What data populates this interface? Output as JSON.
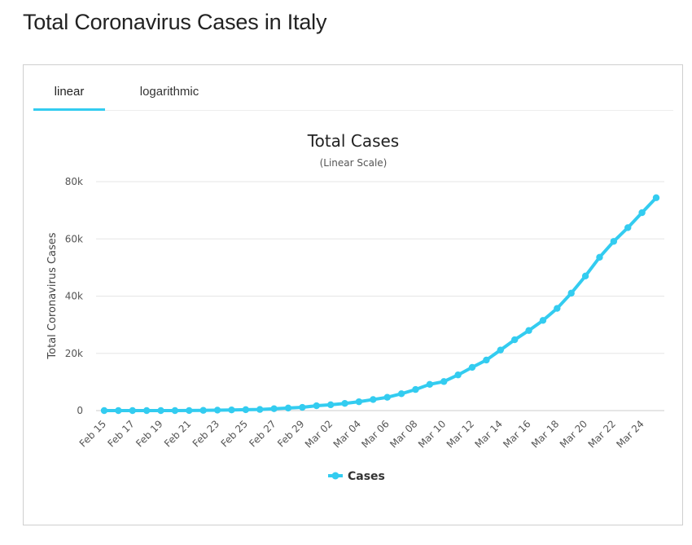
{
  "page": {
    "title": "Total Coronavirus Cases in Italy"
  },
  "tabs": [
    {
      "label": "linear",
      "active": true
    },
    {
      "label": "logarithmic",
      "active": false
    }
  ],
  "colors": {
    "series": "#33ccf0",
    "tab_active": "#33ccf0",
    "grid": "#e6e6e6"
  },
  "chart_data": {
    "type": "line",
    "title": "Total Cases",
    "subtitle": "(Linear Scale)",
    "xlabel": "",
    "ylabel": "Total Coronavirus Cases",
    "ylim": [
      0,
      80000
    ],
    "yticks": [
      0,
      20000,
      40000,
      60000,
      80000
    ],
    "ytick_labels": [
      "0",
      "20k",
      "40k",
      "60k",
      "80k"
    ],
    "grid": true,
    "legend": "bottom-center",
    "x": [
      "Feb 15",
      "Feb 16",
      "Feb 17",
      "Feb 18",
      "Feb 19",
      "Feb 20",
      "Feb 21",
      "Feb 22",
      "Feb 23",
      "Feb 24",
      "Feb 25",
      "Feb 26",
      "Feb 27",
      "Feb 28",
      "Feb 29",
      "Mar 01",
      "Mar 02",
      "Mar 03",
      "Mar 04",
      "Mar 05",
      "Mar 06",
      "Mar 07",
      "Mar 08",
      "Mar 09",
      "Mar 10",
      "Mar 11",
      "Mar 12",
      "Mar 13",
      "Mar 14",
      "Mar 15",
      "Mar 16",
      "Mar 17",
      "Mar 18",
      "Mar 19",
      "Mar 20",
      "Mar 21",
      "Mar 22",
      "Mar 23",
      "Mar 24",
      "Mar 25"
    ],
    "xtick_labels": [
      "Feb 15",
      "Feb 17",
      "Feb 19",
      "Feb 21",
      "Feb 23",
      "Feb 25",
      "Feb 27",
      "Feb 29",
      "Mar 02",
      "Mar 04",
      "Mar 06",
      "Mar 08",
      "Mar 10",
      "Mar 12",
      "Mar 14",
      "Mar 16",
      "Mar 18",
      "Mar 20",
      "Mar 22",
      "Mar 24"
    ],
    "series": [
      {
        "name": "Cases",
        "values": [
          3,
          3,
          3,
          3,
          3,
          3,
          20,
          79,
          157,
          229,
          322,
          400,
          650,
          888,
          1128,
          1694,
          2036,
          2502,
          3089,
          3858,
          4636,
          5883,
          7375,
          9172,
          10149,
          12462,
          15113,
          17660,
          21157,
          24747,
          27980,
          31506,
          35713,
          41035,
          47021,
          53578,
          59138,
          63927,
          69176,
          74386
        ]
      }
    ]
  }
}
